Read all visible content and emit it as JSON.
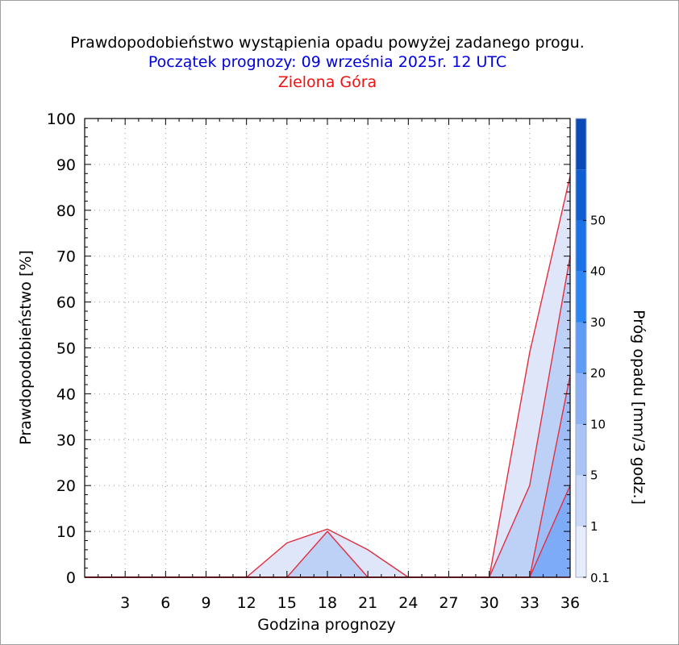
{
  "colors": {
    "title": "#000000",
    "subtitle": "#0000dd",
    "location": "#ee1111",
    "series_line": "#e03040",
    "fill_0_1": "#dfe6fa",
    "fill_1": "#bdd0f6",
    "fill_5": "#9ebdf6",
    "fill_10": "#7eabf7",
    "fill_20": "#5c97f5"
  },
  "chart_data": {
    "type": "area",
    "title": "Prawdopodobieństwo wystąpienia opadu powyżej zadanego progu.",
    "subtitle": "Początek prognozy: 09 września 2025r. 12 UTC",
    "location": "Zielona Góra",
    "xlabel": "Godzina prognozy",
    "ylabel": "Prawdopodobieństwo [%]",
    "xlim": [
      0,
      36
    ],
    "ylim": [
      0,
      100
    ],
    "x_ticks": [
      3,
      6,
      9,
      12,
      15,
      18,
      21,
      24,
      27,
      30,
      33,
      36
    ],
    "y_ticks": [
      0,
      10,
      20,
      30,
      40,
      50,
      60,
      70,
      80,
      90,
      100
    ],
    "grid": true,
    "x": [
      0,
      3,
      6,
      9,
      12,
      15,
      18,
      21,
      24,
      27,
      30,
      33,
      36
    ],
    "series": [
      {
        "name": "0.1",
        "values": [
          0,
          0,
          0,
          0,
          0,
          7.5,
          10.5,
          6,
          0,
          0,
          0,
          49,
          87.5
        ]
      },
      {
        "name": "1",
        "values": [
          0,
          0,
          0,
          0,
          0,
          0,
          10,
          0,
          0,
          0,
          0,
          20,
          70
        ]
      },
      {
        "name": "5",
        "values": [
          0,
          0,
          0,
          0,
          0,
          0,
          0,
          0,
          0,
          0,
          0,
          0,
          44
        ]
      },
      {
        "name": "10",
        "values": [
          0,
          0,
          0,
          0,
          0,
          0,
          0,
          0,
          0,
          0,
          0,
          0,
          20
        ]
      },
      {
        "name": "20",
        "values": [
          0,
          0,
          0,
          0,
          0,
          0,
          0,
          0,
          0,
          0,
          0,
          0,
          0
        ]
      }
    ],
    "colorbar": {
      "label": "Próg opadu [mm/3 godz.]",
      "tick_labels": [
        "0.1",
        "1",
        "5",
        "10",
        "20",
        "30",
        "40",
        "50"
      ],
      "colors": [
        "#e6ecfb",
        "#c9d8f8",
        "#aac3f5",
        "#8cb1f7",
        "#5f9cf6",
        "#2a86f4",
        "#1a72e6",
        "#0e5ed2",
        "#0a4ab8"
      ]
    }
  }
}
